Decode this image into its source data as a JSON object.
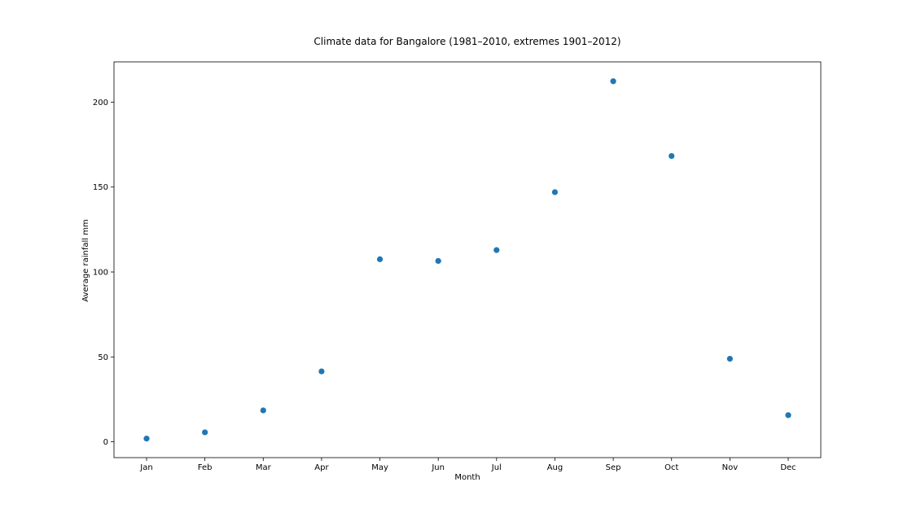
{
  "chart_data": {
    "type": "scatter",
    "title": "Climate data for Bangalore (1981–2010, extremes 1901–2012)",
    "xlabel": "Month",
    "ylabel": "Average rainfall mm",
    "categories": [
      "Jan",
      "Feb",
      "Mar",
      "Apr",
      "May",
      "Jun",
      "Jul",
      "Aug",
      "Sep",
      "Oct",
      "Nov",
      "Dec"
    ],
    "values": [
      1.9,
      5.6,
      18.5,
      41.5,
      107.5,
      106.5,
      112.9,
      147.0,
      212.3,
      168.3,
      48.9,
      15.7
    ],
    "yticks": [
      0,
      50,
      100,
      150,
      200
    ],
    "ylim": [
      -9.3,
      223.7
    ],
    "grid": false,
    "legend": "none",
    "marker_color": "#1f77b4"
  }
}
